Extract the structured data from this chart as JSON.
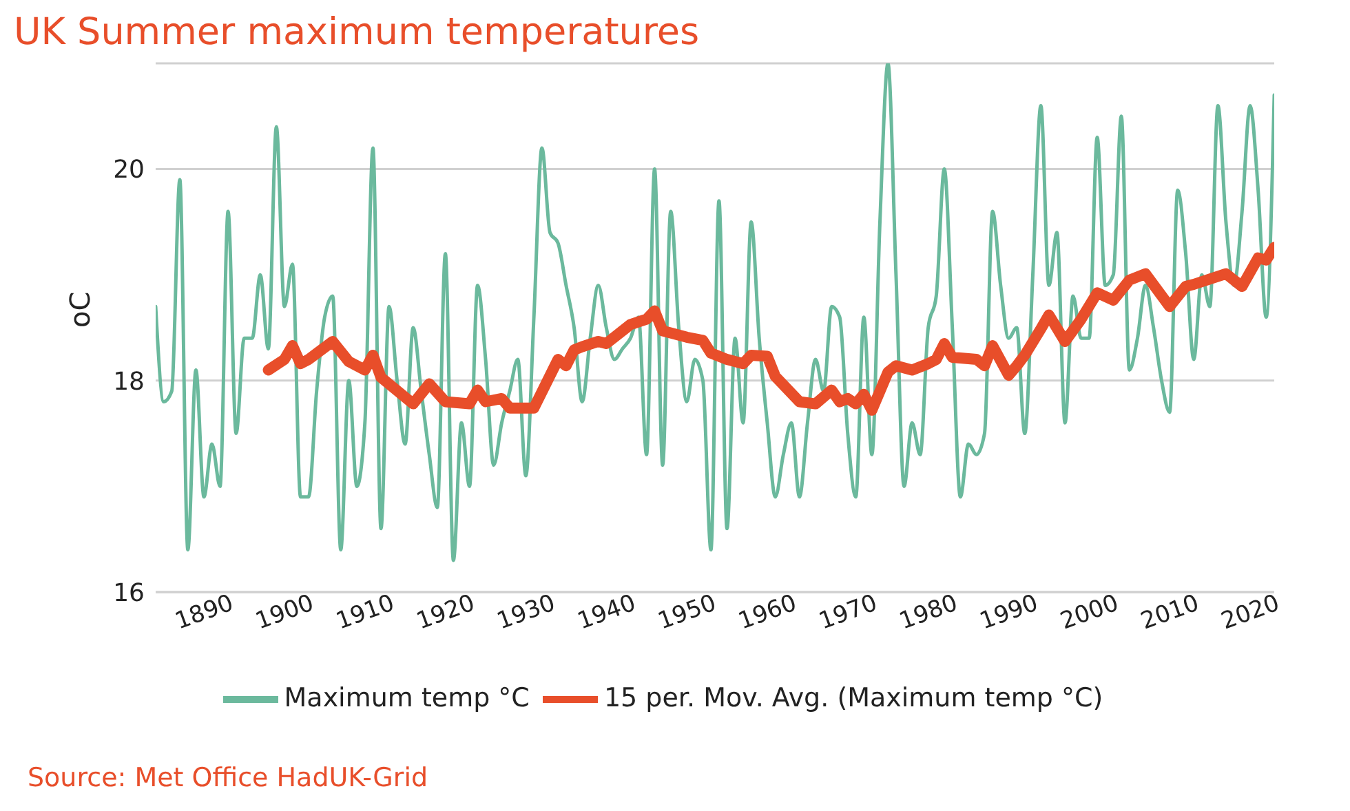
{
  "chart_data": {
    "type": "line",
    "title": "UK Summer maximum temperatures",
    "ylabel": "oC",
    "annotations": [
      "Source: Met Office HadUK-Grid"
    ],
    "x": [
      1884,
      1885,
      1886,
      1887,
      1888,
      1889,
      1890,
      1891,
      1892,
      1893,
      1894,
      1895,
      1896,
      1897,
      1898,
      1899,
      1900,
      1901,
      1902,
      1903,
      1904,
      1905,
      1906,
      1907,
      1908,
      1909,
      1910,
      1911,
      1912,
      1913,
      1914,
      1915,
      1916,
      1917,
      1918,
      1919,
      1920,
      1921,
      1922,
      1923,
      1924,
      1925,
      1926,
      1927,
      1928,
      1929,
      1930,
      1931,
      1932,
      1933,
      1934,
      1935,
      1936,
      1937,
      1938,
      1939,
      1940,
      1941,
      1942,
      1943,
      1944,
      1945,
      1946,
      1947,
      1948,
      1949,
      1950,
      1951,
      1952,
      1953,
      1954,
      1955,
      1956,
      1957,
      1958,
      1959,
      1960,
      1961,
      1962,
      1963,
      1964,
      1965,
      1966,
      1967,
      1968,
      1969,
      1970,
      1971,
      1972,
      1973,
      1974,
      1975,
      1976,
      1977,
      1978,
      1979,
      1980,
      1981,
      1982,
      1983,
      1984,
      1985,
      1986,
      1987,
      1988,
      1989,
      1990,
      1991,
      1992,
      1993,
      1994,
      1995,
      1996,
      1997,
      1998,
      1999,
      2000,
      2001,
      2002,
      2003,
      2004,
      2005,
      2006,
      2007,
      2008,
      2009,
      2010,
      2011,
      2012,
      2013,
      2014,
      2015,
      2016,
      2017,
      2018,
      2019,
      2020,
      2021,
      2022,
      2023
    ],
    "series": [
      {
        "name": "Maximum temp °C",
        "color": "#6bb99d",
        "values": [
          18.7,
          17.8,
          17.9,
          19.9,
          16.4,
          18.1,
          16.9,
          17.4,
          17.0,
          19.6,
          17.5,
          18.4,
          18.4,
          19.0,
          18.3,
          20.4,
          18.7,
          19.1,
          16.9,
          16.9,
          17.9,
          18.6,
          18.8,
          16.4,
          18.0,
          17.0,
          17.6,
          20.2,
          16.6,
          18.7,
          18.0,
          17.4,
          18.5,
          17.9,
          17.3,
          16.8,
          19.2,
          16.3,
          17.6,
          17.0,
          18.9,
          18.2,
          17.2,
          17.6,
          17.9,
          18.2,
          17.1,
          18.6,
          20.2,
          19.4,
          19.3,
          18.9,
          18.5,
          17.8,
          18.4,
          18.9,
          18.5,
          18.2,
          18.3,
          18.4,
          18.6,
          17.3,
          20.0,
          17.2,
          19.6,
          18.5,
          17.8,
          18.2,
          18.0,
          16.4,
          19.7,
          16.6,
          18.4,
          17.6,
          19.5,
          18.4,
          17.6,
          16.9,
          17.3,
          17.6,
          16.9,
          17.6,
          18.2,
          17.9,
          18.7,
          18.6,
          17.5,
          16.9,
          18.6,
          17.3,
          19.5,
          21.0,
          19.0,
          17.0,
          17.6,
          17.3,
          18.5,
          18.8,
          20.0,
          18.5,
          16.9,
          17.4,
          17.3,
          17.5,
          19.6,
          18.9,
          18.4,
          18.5,
          17.5,
          19.0,
          20.6,
          18.9,
          19.4,
          17.6,
          18.8,
          18.4,
          18.4,
          20.3,
          18.9,
          19.0,
          20.5,
          18.1,
          18.4,
          18.9,
          18.5,
          18.0,
          17.7,
          19.8,
          19.2,
          18.2,
          19.0,
          18.7,
          20.6,
          19.5,
          18.9,
          19.6,
          20.6,
          19.8,
          18.6,
          20.7
        ]
      },
      {
        "name": "15 per. Mov. Avg. (Maximum temp °C)",
        "color": "#e84e2a",
        "x": [
          1898,
          1900,
          1901,
          1902,
          1903,
          1906,
          1908,
          1910,
          1911,
          1912,
          1916,
          1918,
          1920,
          1923,
          1924,
          1925,
          1927,
          1928,
          1931,
          1934,
          1935,
          1936,
          1937,
          1939,
          1940,
          1943,
          1945,
          1946,
          1947,
          1950,
          1952,
          1953,
          1955,
          1957,
          1958,
          1960,
          1961,
          1964,
          1966,
          1968,
          1969,
          1970,
          1971,
          1972,
          1973,
          1975,
          1976,
          1978,
          1980,
          1981,
          1982,
          1983,
          1986,
          1987,
          1988,
          1990,
          1991,
          1992,
          1994,
          1995,
          1997,
          1999,
          2001,
          2003,
          2005,
          2007,
          2010,
          2012,
          2013,
          2017,
          2019,
          2021,
          2022,
          2023
        ],
        "values": [
          18.1,
          18.2,
          18.33,
          18.16,
          18.2,
          18.37,
          18.18,
          18.1,
          18.24,
          18.03,
          17.78,
          17.97,
          17.8,
          17.78,
          17.91,
          17.8,
          17.83,
          17.74,
          17.74,
          18.2,
          18.14,
          18.29,
          18.32,
          18.37,
          18.35,
          18.53,
          18.58,
          18.66,
          18.47,
          18.41,
          18.38,
          18.26,
          18.2,
          18.16,
          18.24,
          18.23,
          18.04,
          17.8,
          17.78,
          17.91,
          17.8,
          17.83,
          17.78,
          17.87,
          17.72,
          18.08,
          18.14,
          18.1,
          18.16,
          18.2,
          18.35,
          18.22,
          18.2,
          18.14,
          18.33,
          18.05,
          18.14,
          18.24,
          18.49,
          18.62,
          18.37,
          18.58,
          18.83,
          18.76,
          18.95,
          19.01,
          18.7,
          18.89,
          18.91,
          19.01,
          18.89,
          19.16,
          19.14,
          19.26
        ]
      }
    ],
    "xlim": [
      1884,
      2023
    ],
    "xticks": [
      1890,
      1900,
      1910,
      1920,
      1930,
      1940,
      1950,
      1960,
      1970,
      1980,
      1990,
      2000,
      2010,
      2020
    ],
    "ylim": [
      16,
      21
    ],
    "yticks": [
      16,
      18,
      20
    ],
    "grid": "y",
    "legend": "bottom",
    "marker": "none",
    "line_style": "solid"
  }
}
